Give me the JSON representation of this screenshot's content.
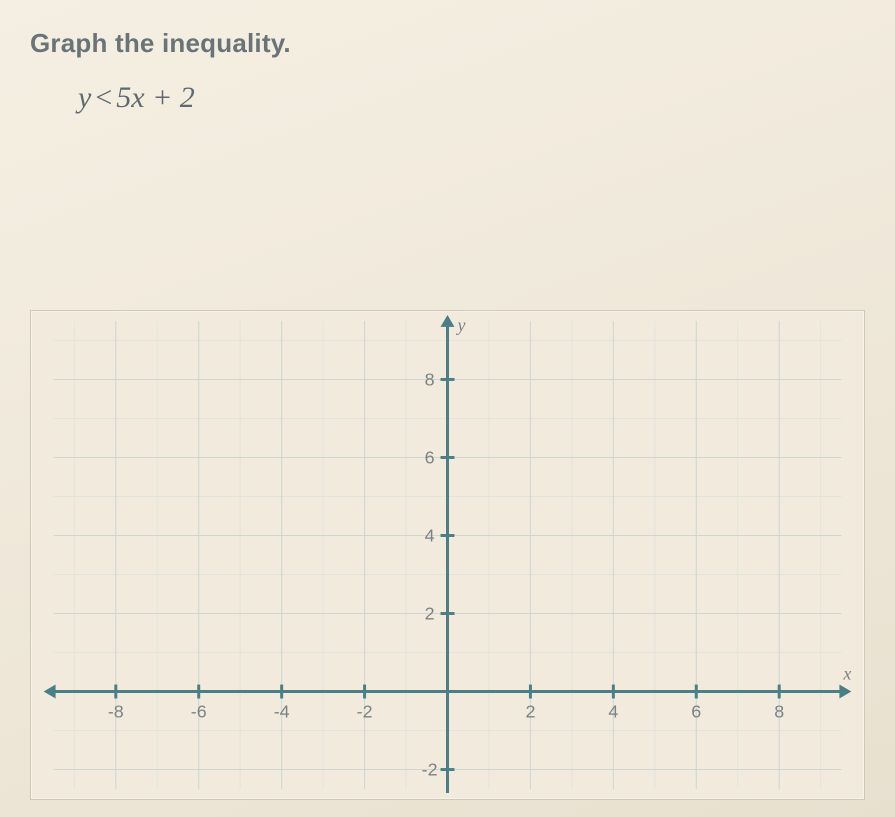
{
  "prompt": "Graph the inequality.",
  "equation": {
    "lhs": "y",
    "op": "<",
    "rhs": "5x + 2"
  },
  "chart": {
    "type": "blank-cartesian-grid",
    "background_color": "#f2ebdd",
    "grid_color_minor": "#e1e4dd",
    "grid_color_major": "#cfd6d2",
    "axis_color": "#4a7f88",
    "label_color": "#7b8286",
    "label_fontsize": 18,
    "x": {
      "min": -9.5,
      "max": 9.5,
      "tick_step": 1,
      "major_step": 2,
      "labels": [
        -8,
        -6,
        -4,
        -2,
        2,
        4,
        6,
        8
      ],
      "name": "x"
    },
    "y": {
      "min": -2.5,
      "max": 9.5,
      "tick_step": 1,
      "major_step": 2,
      "labels": [
        -2,
        2,
        4,
        6,
        8
      ],
      "name": "y"
    }
  }
}
